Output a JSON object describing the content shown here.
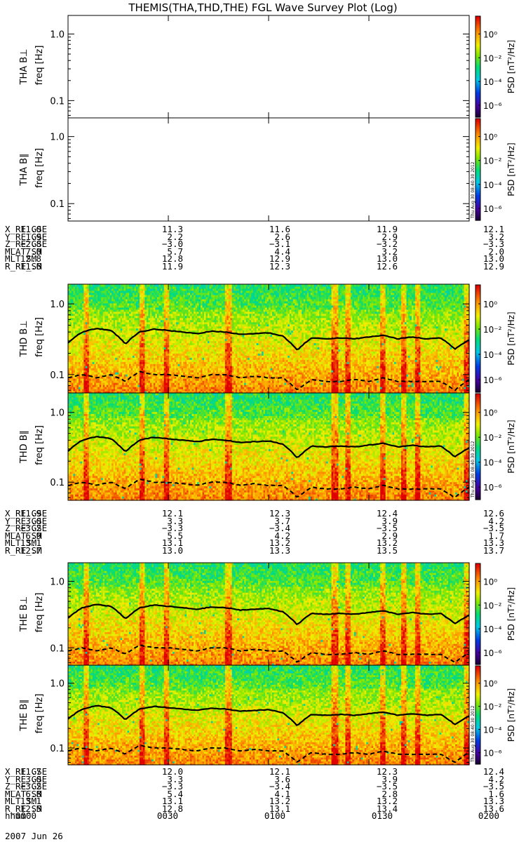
{
  "title": "THEMIS(THA,THD,THE) FGL Wave Survey Plot (Log)",
  "colors": {
    "line": "#000000",
    "background": "#ffffff"
  },
  "chart_data": {
    "type": "heatmap",
    "x_tick_labels": [
      "0000",
      "0030",
      "0100",
      "0130",
      "0200"
    ],
    "x_title": "hhmm",
    "date": "2007 Jun 26",
    "colorbar": {
      "label": "PSD [nT²/Hz]",
      "tick_labels": [
        "10⁰",
        "10⁻²",
        "10⁻⁴",
        "10⁻⁶"
      ],
      "ticks": [
        0,
        -2,
        -4,
        -6
      ],
      "range_log": [
        -7,
        1.5
      ],
      "scale": "rainbow"
    },
    "stamp": "Thu Aug 30 08:40:30 2012",
    "panels": [
      {
        "id": "tha-bperp",
        "ylabel": "THA B⊥",
        "yunit": "freq [Hz]",
        "has_data": false,
        "stamp": false
      },
      {
        "id": "tha-bpar",
        "ylabel": "THA B∥",
        "yunit": "freq [Hz]",
        "has_data": false,
        "stamp": true
      },
      {
        "id": "thd-bperp",
        "ylabel": "THD B⊥",
        "yunit": "freq [Hz]",
        "has_data": true,
        "stamp": false
      },
      {
        "id": "thd-bpar",
        "ylabel": "THD B∥",
        "yunit": "freq [Hz]",
        "has_data": true,
        "stamp": true
      },
      {
        "id": "the-bperp",
        "ylabel": "THE B⊥",
        "yunit": "freq [Hz]",
        "has_data": true,
        "stamp": false
      },
      {
        "id": "the-bpar",
        "ylabel": "THE B∥",
        "yunit": "freq [Hz]",
        "has_data": true,
        "stamp": true
      }
    ],
    "y_tick_labels": [
      "1.0",
      "0.1"
    ],
    "ylim": [
      0.055,
      1.9
    ],
    "yscale": "log",
    "ephemeris": [
      {
        "probe": "THA",
        "rows": [
          {
            "name": "X_RE_GSE",
            "values": [
              "11.0",
              "11.3",
              "11.6",
              "11.9",
              "12.1"
            ]
          },
          {
            "name": "Y_RE_GSE",
            "values": [
              "1.9",
              "2.2",
              "2.6",
              "2.9",
              "3.2"
            ]
          },
          {
            "name": "Z_RE_GSE",
            "values": [
              "−2.8",
              "−3.0",
              "−3.1",
              "−3.2",
              "−3.3"
            ]
          },
          {
            "name": "MLAT_SM",
            "values": [
              "7.0",
              "5.7",
              "4.4",
              "3.2",
              "2.0"
            ]
          },
          {
            "name": "MLT_SM",
            "values": [
              "12.8",
              "12.8",
              "12.9",
              "13.0",
              "13.0"
            ]
          },
          {
            "name": "R_RE_SM",
            "values": [
              "11.6",
              "11.9",
              "12.3",
              "12.6",
              "12.9"
            ]
          }
        ]
      },
      {
        "probe": "THD",
        "rows": [
          {
            "name": "X_RE_GSE",
            "values": [
              "11.9",
              "12.1",
              "12.3",
              "12.4",
              "12.6"
            ]
          },
          {
            "name": "Y_RE_GSE",
            "values": [
              "3.0",
              "3.3",
              "3.7",
              "3.9",
              "4.2"
            ]
          },
          {
            "name": "Z_RE_GSE",
            "values": [
              "−3.2",
              "−3.3",
              "−3.4",
              "−3.5",
              "−3.5"
            ]
          },
          {
            "name": "MLAT_SM",
            "values": [
              "6.9",
              "5.5",
              "4.2",
              "2.9",
              "1.7"
            ]
          },
          {
            "name": "MLT_SM",
            "values": [
              "13.1",
              "13.1",
              "13.2",
              "13.2",
              "13.3"
            ]
          },
          {
            "name": "R_RE_SM",
            "values": [
              "12.7",
              "13.0",
              "13.3",
              "13.5",
              "13.7"
            ]
          }
        ]
      },
      {
        "probe": "THE",
        "rows": [
          {
            "name": "X_RE_GSE",
            "values": [
              "11.7",
              "12.0",
              "12.1",
              "12.3",
              "12.4"
            ]
          },
          {
            "name": "Y_RE_GSE",
            "values": [
              "3.0",
              "3.3",
              "3.6",
              "3.9",
              "4.2"
            ]
          },
          {
            "name": "Z_RE_GSE",
            "values": [
              "−3.2",
              "−3.3",
              "−3.4",
              "−3.5",
              "−3.5"
            ]
          },
          {
            "name": "MLAT_SM",
            "values": [
              "6.8",
              "5.4",
              "4.1",
              "2.8",
              "1.6"
            ]
          },
          {
            "name": "MLT_SM",
            "values": [
              "13.1",
              "13.1",
              "13.2",
              "13.2",
              "13.3"
            ]
          },
          {
            "name": "R_RE_SM",
            "values": [
              "12.5",
              "12.8",
              "13.1",
              "13.4",
              "13.6"
            ]
          }
        ]
      }
    ],
    "gyro_freq_line": {
      "description_key": "solid",
      "values_hz": [
        0.28,
        0.4,
        0.45,
        0.42,
        0.27,
        0.4,
        0.44,
        0.42,
        0.4,
        0.38,
        0.41,
        0.4,
        0.37,
        0.38,
        0.39,
        0.35,
        0.22,
        0.33,
        0.32,
        0.33,
        0.32,
        0.34,
        0.36,
        0.32,
        0.34,
        0.32,
        0.33,
        0.23,
        0.31
      ]
    },
    "half_gyro_line": {
      "description_key": "dashed",
      "values_hz": [
        0.09,
        0.1,
        0.09,
        0.1,
        0.08,
        0.11,
        0.1,
        0.1,
        0.095,
        0.09,
        0.1,
        0.1,
        0.09,
        0.095,
        0.09,
        0.09,
        0.06,
        0.085,
        0.08,
        0.08,
        0.085,
        0.08,
        0.09,
        0.08,
        0.08,
        0.08,
        0.08,
        0.06,
        0.085
      ]
    }
  }
}
